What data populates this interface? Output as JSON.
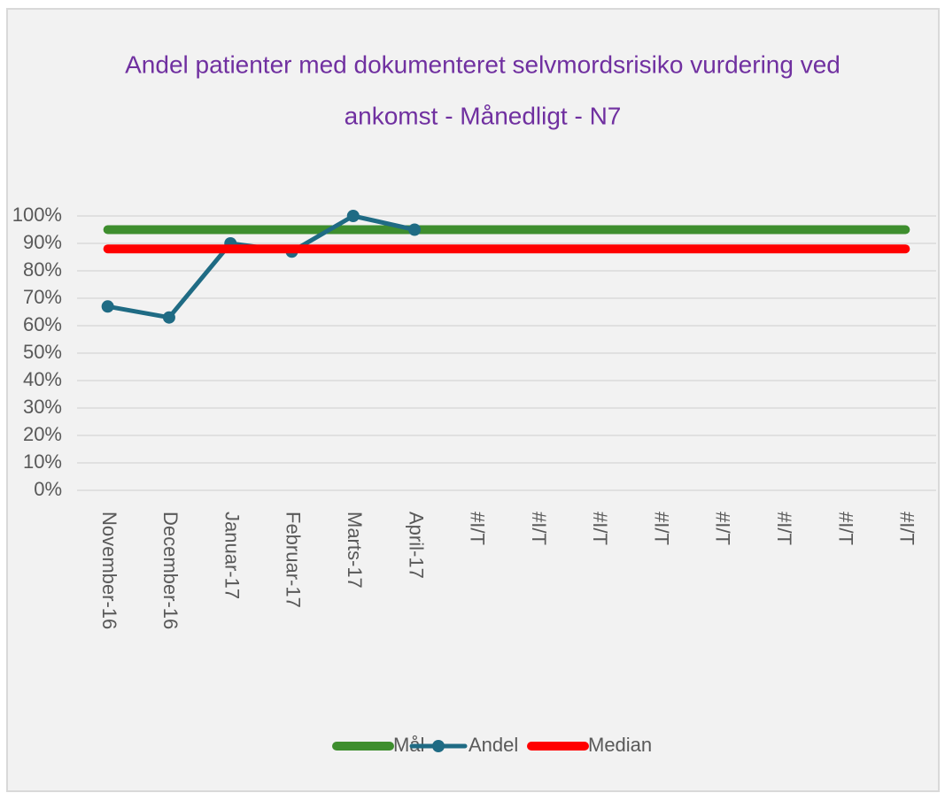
{
  "chart_data": {
    "type": "line",
    "title": [
      "Andel patienter med dokumenteret selvmordsrisiko vurdering ved",
      "ankomst -  Månedligt - N7"
    ],
    "categories": [
      "November-16",
      "December-16",
      "Januar-17",
      "Februar-17",
      "Marts-17",
      "April-17",
      "#I/T",
      "#I/T",
      "#I/T",
      "#I/T",
      "#I/T",
      "#I/T",
      "#I/T",
      "#I/T"
    ],
    "series": [
      {
        "name": "Mål",
        "color": "#3e8e2e",
        "values": [
          95,
          95,
          95,
          95,
          95,
          95,
          95,
          95,
          95,
          95,
          95,
          95,
          95,
          95
        ]
      },
      {
        "name": "Andel",
        "color": "#1f6b84",
        "values": [
          67,
          63,
          90,
          87,
          100,
          95,
          null,
          null,
          null,
          null,
          null,
          null,
          null,
          null
        ]
      },
      {
        "name": "Median",
        "color": "#ff0000",
        "values": [
          88,
          88,
          88,
          88,
          88,
          88,
          88,
          88,
          88,
          88,
          88,
          88,
          88,
          88
        ]
      }
    ],
    "ylim": [
      0,
      100
    ],
    "yticks": [
      {
        "value": 0,
        "label": "0%"
      },
      {
        "value": 10,
        "label": "10%"
      },
      {
        "value": 20,
        "label": "20%"
      },
      {
        "value": 30,
        "label": "30%"
      },
      {
        "value": 40,
        "label": "40%"
      },
      {
        "value": 50,
        "label": "50%"
      },
      {
        "value": 60,
        "label": "60%"
      },
      {
        "value": 70,
        "label": "70%"
      },
      {
        "value": 80,
        "label": "80%"
      },
      {
        "value": 90,
        "label": "90%"
      },
      {
        "value": 100,
        "label": "100%"
      }
    ],
    "grid": true,
    "legend": "bottom"
  }
}
